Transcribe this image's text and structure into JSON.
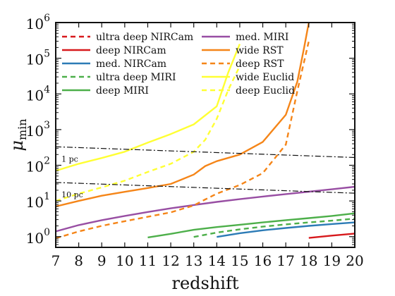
{
  "chart_data": {
    "type": "line",
    "xlabel": "redshift",
    "ylabel": "μ_min",
    "ylabel_main": "μ",
    "ylabel_sub": "min",
    "xlim": [
      7,
      20
    ],
    "ylim": [
      0.5,
      1000000
    ],
    "yscale": "log",
    "x_ticks": [
      7,
      8,
      9,
      10,
      11,
      12,
      13,
      14,
      15,
      16,
      17,
      18,
      19,
      20
    ],
    "x_tick_labels": [
      "7",
      "8",
      "9",
      "10",
      "11",
      "12",
      "13",
      "14",
      "15",
      "16",
      "17",
      "18",
      "19",
      "20"
    ],
    "y_ticks": [
      1,
      10,
      100,
      1000,
      10000,
      100000,
      1000000
    ],
    "y_tick_bases": [
      "10",
      "10",
      "10",
      "10",
      "10",
      "10",
      "10"
    ],
    "y_tick_exps": [
      "0",
      "1",
      "2",
      "3",
      "4",
      "5",
      "6"
    ],
    "legend_placement": "top",
    "series": [
      {
        "name": "ultra deep NIRCam",
        "color": "#d7191c",
        "dash": true,
        "x": [],
        "y": []
      },
      {
        "name": "deep NIRCam",
        "color": "#d7191c",
        "dash": false,
        "x": [
          18,
          19,
          20
        ],
        "y": [
          0.92,
          1.07,
          1.22
        ]
      },
      {
        "name": "med. NIRCam",
        "color": "#2c7bb6",
        "dash": false,
        "x": [
          14,
          15,
          16,
          17,
          18,
          19,
          20
        ],
        "y": [
          0.98,
          1.25,
          1.5,
          1.75,
          2.0,
          2.25,
          2.5
        ]
      },
      {
        "name": "ultra deep MIRI",
        "color": "#4daf4a",
        "dash": true,
        "x": [
          13,
          14,
          15,
          16,
          17,
          18,
          19,
          20
        ],
        "y": [
          0.98,
          1.3,
          1.6,
          1.9,
          2.2,
          2.5,
          2.8,
          3.2
        ]
      },
      {
        "name": "deep MIRI",
        "color": "#4daf4a",
        "dash": false,
        "x": [
          11,
          12,
          13,
          14,
          15,
          16,
          17,
          18,
          19,
          20
        ],
        "y": [
          0.95,
          1.2,
          1.55,
          1.85,
          2.15,
          2.5,
          2.9,
          3.3,
          3.8,
          4.5
        ]
      },
      {
        "name": "med. MIRI",
        "color": "#984ea3",
        "dash": false,
        "x": [
          7,
          8,
          9,
          10,
          11,
          12,
          13,
          14,
          15,
          16,
          17,
          18,
          19,
          20
        ],
        "y": [
          1.4,
          2.1,
          2.9,
          3.8,
          4.9,
          6.2,
          7.7,
          9.4,
          11.2,
          13.3,
          15.6,
          18.2,
          21.2,
          25.0
        ]
      },
      {
        "name": "wide RST",
        "color": "#f58518",
        "dash": false,
        "x": [
          7,
          8,
          9,
          10,
          11,
          12,
          13,
          13.5,
          14,
          15,
          16,
          17,
          17.5,
          17.8,
          18
        ],
        "y": [
          7,
          10,
          14,
          18,
          23,
          30,
          55,
          95,
          130,
          200,
          450,
          2600,
          22000,
          200000,
          1000000
        ]
      },
      {
        "name": "deep RST",
        "color": "#f58518",
        "dash": true,
        "x": [
          7,
          8,
          9,
          10,
          11,
          12,
          13,
          13.5,
          14,
          15,
          16,
          17,
          17.5,
          18
        ],
        "y": [
          0.9,
          1.4,
          2.0,
          2.7,
          3.6,
          4.8,
          7.5,
          11,
          16,
          28,
          60,
          380,
          12000,
          300000
        ]
      },
      {
        "name": "wide Euclid",
        "color": "#ffff33",
        "dash": false,
        "x": [
          7,
          8,
          9,
          10,
          11,
          12,
          13,
          14,
          14.5,
          15
        ],
        "y": [
          70,
          110,
          160,
          240,
          430,
          750,
          1400,
          4500,
          40000,
          250000
        ]
      },
      {
        "name": "deep Euclid",
        "color": "#ffff33",
        "dash": true,
        "x": [
          7,
          8,
          9,
          10,
          11,
          12,
          13,
          13.5,
          14,
          14.5,
          15
        ],
        "y": [
          10,
          16,
          24,
          37,
          65,
          110,
          240,
          520,
          2000,
          13000,
          60000
        ]
      }
    ],
    "annotations": [
      {
        "text": "1 pc",
        "x": [
          7,
          20
        ],
        "y": [
          330,
          165
        ],
        "label_x": 7.25,
        "label_y": 125
      },
      {
        "text": "10 pc",
        "x": [
          7,
          20
        ],
        "y": [
          33,
          16.5
        ],
        "label_x": 7.25,
        "label_y": 12.5
      }
    ]
  }
}
